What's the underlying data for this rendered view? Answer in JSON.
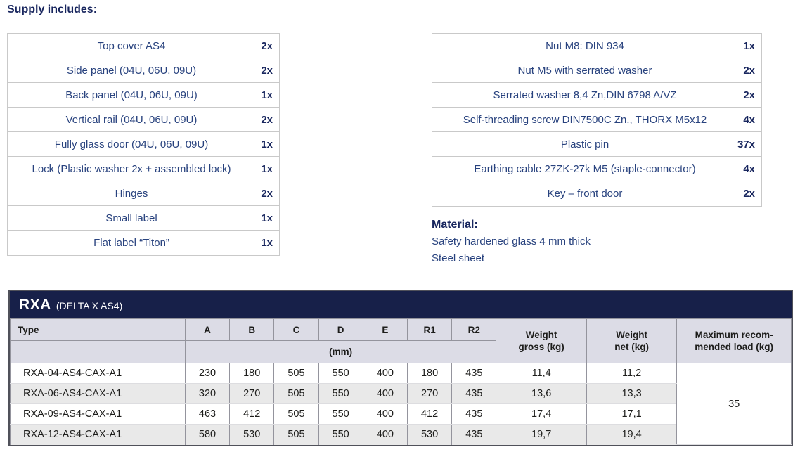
{
  "supply": {
    "heading": "Supply includes:",
    "left_items": [
      {
        "label": "Top cover AS4",
        "qty": "2x"
      },
      {
        "label": "Side panel (04U, 06U, 09U)",
        "qty": "2x"
      },
      {
        "label": "Back panel (04U, 06U, 09U)",
        "qty": "1x"
      },
      {
        "label": "Vertical rail (04U, 06U, 09U)",
        "qty": "2x"
      },
      {
        "label": "Fully glass door (04U, 06U, 09U)",
        "qty": "1x"
      },
      {
        "label": "Lock (Plastic washer 2x + assembled lock)",
        "qty": "1x"
      },
      {
        "label": "Hinges",
        "qty": "2x"
      },
      {
        "label": "Small label",
        "qty": "1x"
      },
      {
        "label": "Flat label “Titon”",
        "qty": "1x"
      }
    ],
    "right_items": [
      {
        "label": "Nut M8: DIN 934",
        "qty": "1x"
      },
      {
        "label": "Nut M5 with serrated washer",
        "qty": "2x"
      },
      {
        "label": "Serrated washer 8,4 Zn,DIN 6798 A/VZ",
        "qty": "2x"
      },
      {
        "label": "Self-threading screw DIN7500C Zn., THORX M5x12",
        "qty": "4x"
      },
      {
        "label": "Plastic pin",
        "qty": "37x"
      },
      {
        "label": "Earthing cable 27ZK-27k M5 (staple-connector)",
        "qty": "4x"
      },
      {
        "label": "Key – front door",
        "qty": "2x"
      }
    ]
  },
  "material": {
    "heading": "Material:",
    "line1": "Safety hardened glass 4 mm thick",
    "line2": "Steel sheet"
  },
  "spec_table": {
    "title": "RXA",
    "subtitle": "(DELTA X AS4)",
    "type_header": "Type",
    "dim_headers": [
      "A",
      "B",
      "C",
      "D",
      "E",
      "R1",
      "R2"
    ],
    "dim_unit": "(mm)",
    "weight_gross_header": {
      "line1": "Weight",
      "line2": "gross (kg)"
    },
    "weight_net_header": {
      "line1": "Weight",
      "line2": "net (kg)"
    },
    "max_load_header": {
      "line1": "Maximum recom-",
      "line2": "mended load (kg)"
    },
    "rows": [
      {
        "type": "RXA-04-AS4-CAX-A1",
        "a": "230",
        "b": "180",
        "c": "505",
        "d": "550",
        "e": "400",
        "r1": "180",
        "r2": "435",
        "gross": "11,4",
        "net": "11,2"
      },
      {
        "type": "RXA-06-AS4-CAX-A1",
        "a": "320",
        "b": "270",
        "c": "505",
        "d": "550",
        "e": "400",
        "r1": "270",
        "r2": "435",
        "gross": "13,6",
        "net": "13,3"
      },
      {
        "type": "RXA-09-AS4-CAX-A1",
        "a": "463",
        "b": "412",
        "c": "505",
        "d": "550",
        "e": "400",
        "r1": "412",
        "r2": "435",
        "gross": "17,4",
        "net": "17,1"
      },
      {
        "type": "RXA-12-AS4-CAX-A1",
        "a": "580",
        "b": "530",
        "c": "505",
        "d": "550",
        "e": "400",
        "r1": "530",
        "r2": "435",
        "gross": "19,7",
        "net": "19,4"
      }
    ],
    "max_load_value": "35"
  },
  "colors": {
    "navy_bar": "#172049",
    "heading_navy": "#18265e",
    "list_text_blue": "#28427e",
    "header_row_bg": "#dcdce6",
    "alt_row_bg": "#e9e9e9"
  }
}
